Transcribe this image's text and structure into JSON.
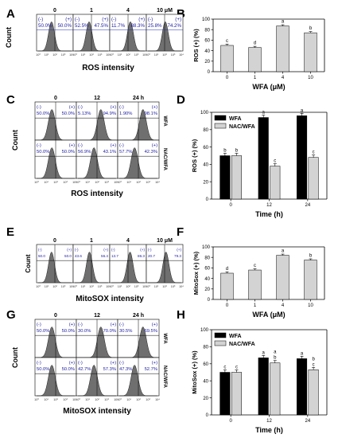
{
  "panels": {
    "A": {
      "letter": "A",
      "xlabel": "ROS intensity",
      "ylabel": "Count",
      "cols": [
        {
          "label": "0",
          "neg": "50.0%",
          "pos": "50.0%"
        },
        {
          "label": "1",
          "neg": "52.5%",
          "pos": "47.5%"
        },
        {
          "label": "4",
          "neg": "11.7%",
          "pos": "88.3%"
        },
        {
          "label": "10 μM",
          "neg": "25.8%",
          "pos": "74.2%"
        }
      ]
    },
    "C": {
      "letter": "C",
      "xlabel": "ROS intensity",
      "ylabel": "Count",
      "cols": [
        "0",
        "12",
        "24 h"
      ],
      "row_labels": [
        "WFA",
        "NAC/WFA"
      ],
      "rows": [
        [
          {
            "neg": "50.0%",
            "pos": "50.0%"
          },
          {
            "neg": "5.13%",
            "pos": "94.9%"
          },
          {
            "neg": "1.90%",
            "pos": "98.1%"
          }
        ],
        [
          {
            "neg": "50.0%",
            "pos": "50.0%"
          },
          {
            "neg": "56.9%",
            "pos": "43.1%"
          },
          {
            "neg": "57.7%",
            "pos": "42.3%"
          }
        ]
      ]
    },
    "E": {
      "letter": "E",
      "xlabel": "MitoSOX intensity",
      "ylabel": "Count",
      "cols": [
        {
          "label": "0",
          "neg": "50.0",
          "pos": "50.0"
        },
        {
          "label": "1",
          "neg": "43.6",
          "pos": "56.4"
        },
        {
          "label": "4",
          "neg": "13.7",
          "pos": "86.3"
        },
        {
          "label": "10 μM",
          "neg": "20.7",
          "pos": "79.3"
        }
      ]
    },
    "G": {
      "letter": "G",
      "xlabel": "MitoSOX intensity",
      "ylabel": "Count",
      "cols": [
        "0",
        "12",
        "24 h"
      ],
      "row_labels": [
        "WFA",
        "NAC/WFA"
      ],
      "rows": [
        [
          {
            "neg": "50.0%",
            "pos": "50.0%"
          },
          {
            "neg": "30.0%",
            "pos": "70.0%"
          },
          {
            "neg": "30.5%",
            "pos": "69.5%"
          }
        ],
        [
          {
            "neg": "50.0%",
            "pos": "50.0%"
          },
          {
            "neg": "42.7%",
            "pos": "57.3%"
          },
          {
            "neg": "47.3%",
            "pos": "52.7%"
          }
        ]
      ]
    },
    "gate_neg": "(-)",
    "gate_pos": "(+)"
  },
  "chart_data": [
    {
      "panel": "B",
      "type": "bar",
      "categories": [
        "0",
        "1",
        "4",
        "10"
      ],
      "values": [
        50,
        46,
        87,
        74
      ],
      "sig": [
        "c",
        "d",
        "a",
        "b"
      ],
      "xlabel": "WFA (μM)",
      "ylabel": "ROS (+) (%)",
      "ylim": [
        0,
        100
      ],
      "yticks": [
        0,
        20,
        40,
        60,
        80,
        100
      ],
      "bar_color": "#d3d3d3"
    },
    {
      "panel": "D",
      "type": "bar",
      "categories": [
        "0",
        "12",
        "24"
      ],
      "series": [
        {
          "name": "WFA",
          "values": [
            50,
            94,
            96
          ],
          "sig": [
            "b",
            "a",
            "a"
          ],
          "color": "#000000"
        },
        {
          "name": "NAC/WFA",
          "values": [
            50,
            38,
            48
          ],
          "sig": [
            "b",
            "c",
            "c"
          ],
          "color": "#d3d3d3"
        }
      ],
      "xlabel": "Time (h)",
      "ylabel": "ROS (+) (%)",
      "ylim": [
        0,
        100
      ],
      "yticks": [
        0,
        20,
        40,
        60,
        80,
        100
      ],
      "legend": "top-left"
    },
    {
      "panel": "F",
      "type": "bar",
      "categories": [
        "0",
        "1",
        "4",
        "10"
      ],
      "values": [
        50,
        56,
        84,
        75
      ],
      "sig": [
        "d",
        "c",
        "a",
        "b"
      ],
      "xlabel": "WFA (μM)",
      "ylabel": "MitoSox (+) (%)",
      "ylim": [
        0,
        100
      ],
      "yticks": [
        0,
        20,
        40,
        60,
        80,
        100
      ],
      "bar_color": "#d3d3d3"
    },
    {
      "panel": "H",
      "type": "bar",
      "categories": [
        "0",
        "12",
        "24"
      ],
      "series": [
        {
          "name": "WFA",
          "values": [
            50,
            67,
            66
          ],
          "sig": [
            "c",
            "a",
            "a"
          ],
          "color": "#000000"
        },
        {
          "name": "NAC/WFA",
          "values": [
            50,
            61,
            53
          ],
          "sig": [
            "c",
            "a b",
            "b c"
          ],
          "color": "#d3d3d3"
        }
      ],
      "xlabel": "Time (h)",
      "ylabel": "MitoSox (+) (%)",
      "ylim": [
        0,
        100
      ],
      "yticks": [
        0,
        20,
        40,
        60,
        80,
        100
      ],
      "legend": "top-left"
    }
  ]
}
